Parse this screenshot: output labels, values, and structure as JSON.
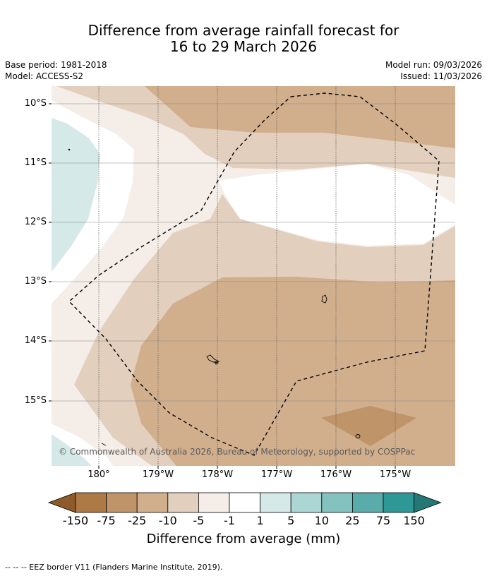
{
  "title": {
    "line1": "Difference from average rainfall forecast for",
    "line2": "16 to 29 March 2026"
  },
  "meta": {
    "base_period": "Base period: 1981-2018",
    "model": "Model: ACCESS-S2",
    "model_run": "Model run: 09/03/2026",
    "issued": "Issued: 11/03/2026"
  },
  "axes": {
    "lat_labels": [
      "10°S",
      "11°S",
      "12°S",
      "13°S",
      "14°S",
      "15°S"
    ],
    "lon_labels": [
      "180°",
      "179°W",
      "178°W",
      "177°W",
      "176°W",
      "175°W"
    ]
  },
  "copyright": "© Commonwealth of Australia 2026, Bureau of Meteorology, supported by COSPPac",
  "colorbar": {
    "ticks": [
      "-150",
      "-75",
      "-25",
      "-10",
      "-5",
      "-1",
      "1",
      "5",
      "10",
      "25",
      "75",
      "150"
    ],
    "colors": [
      "#8e5a2a",
      "#ad7a45",
      "#be9468",
      "#d1af8d",
      "#e2cfbd",
      "#f4ede8",
      "#ffffff",
      "#d4e9e8",
      "#acd6d4",
      "#84c2c0",
      "#5aacab",
      "#2d9895",
      "#237775"
    ],
    "title": "Difference from average (mm)"
  },
  "footer": "--  --  -- EEZ border V11 (Flanders Marine Institute, 2019)."
}
